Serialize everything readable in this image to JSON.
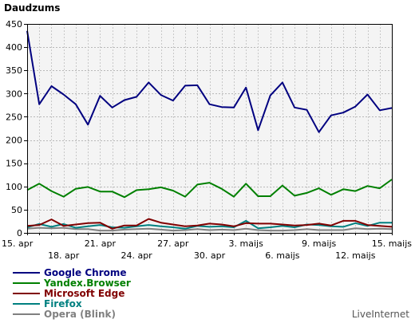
{
  "chart_data": {
    "type": "line",
    "ylabel": "Daudzums",
    "ylim": [
      0,
      450
    ],
    "yticks": [
      0,
      50,
      100,
      150,
      200,
      250,
      300,
      350,
      400,
      450
    ],
    "grid": true,
    "legend_position": "bottom-left",
    "credit": "LiveInternet",
    "x": [
      "15. apr",
      "16. apr",
      "17. apr",
      "18. apr",
      "19. apr",
      "20. apr",
      "21. apr",
      "22. apr",
      "23. apr",
      "24. apr",
      "25. apr",
      "26. apr",
      "27. apr",
      "28. apr",
      "29. apr",
      "30. apr",
      "1. maijs",
      "2. maijs",
      "3. maijs",
      "4. maijs",
      "5. maijs",
      "6. maijs",
      "7. maijs",
      "8. maijs",
      "9. maijs",
      "10. maijs",
      "11. maijs",
      "12. maijs",
      "13. maijs",
      "14. maijs",
      "15. maijs"
    ],
    "x_tick_labels": [
      {
        "label": "15. apr",
        "index": 0,
        "row": 1
      },
      {
        "label": "18. apr",
        "index": 3,
        "row": 2
      },
      {
        "label": "21. apr",
        "index": 6,
        "row": 1
      },
      {
        "label": "24. apr",
        "index": 9,
        "row": 2
      },
      {
        "label": "27. apr",
        "index": 12,
        "row": 1
      },
      {
        "label": "30. apr",
        "index": 15,
        "row": 2
      },
      {
        "label": "3. maijs",
        "index": 18,
        "row": 1
      },
      {
        "label": "6. maijs",
        "index": 21,
        "row": 2
      },
      {
        "label": "9. maijs",
        "index": 24,
        "row": 1
      },
      {
        "label": "12. maijs",
        "index": 27,
        "row": 2
      },
      {
        "label": "15. maijs",
        "index": 30,
        "row": 1
      }
    ],
    "series": [
      {
        "name": "Google Chrome",
        "color": "#000080",
        "values": [
          435,
          277,
          316,
          298,
          277,
          233,
          295,
          270,
          286,
          293,
          324,
          297,
          285,
          317,
          318,
          277,
          271,
          270,
          313,
          221,
          296,
          324,
          270,
          265,
          217,
          253,
          259,
          272,
          298,
          264,
          269
        ]
      },
      {
        "name": "Yandex.Browser",
        "color": "#008000",
        "values": [
          92,
          106,
          90,
          78,
          95,
          99,
          89,
          89,
          77,
          92,
          94,
          98,
          91,
          78,
          104,
          108,
          95,
          78,
          106,
          79,
          79,
          102,
          80,
          86,
          96,
          82,
          94,
          90,
          101,
          96,
          115
        ]
      },
      {
        "name": "Microsoft Edge",
        "color": "#800000",
        "values": [
          15,
          17,
          29,
          15,
          18,
          21,
          22,
          9,
          16,
          16,
          30,
          22,
          18,
          14,
          16,
          20,
          18,
          14,
          21,
          20,
          20,
          18,
          16,
          17,
          20,
          16,
          26,
          26,
          17,
          15,
          13
        ]
      },
      {
        "name": "Firefox",
        "color": "#008080",
        "values": [
          12,
          19,
          13,
          19,
          11,
          14,
          17,
          12,
          11,
          14,
          17,
          14,
          12,
          9,
          15,
          13,
          14,
          12,
          26,
          10,
          12,
          15,
          12,
          18,
          17,
          14,
          13,
          21,
          15,
          22,
          22
        ]
      },
      {
        "name": "Opera (Blink)",
        "color": "#808080",
        "values": [
          9,
          11,
          10,
          11,
          8,
          8,
          5,
          5,
          7,
          8,
          9,
          7,
          5,
          6,
          8,
          6,
          7,
          6,
          9,
          6,
          5,
          5,
          6,
          8,
          6,
          6,
          6,
          10,
          8,
          9,
          8
        ]
      }
    ]
  }
}
